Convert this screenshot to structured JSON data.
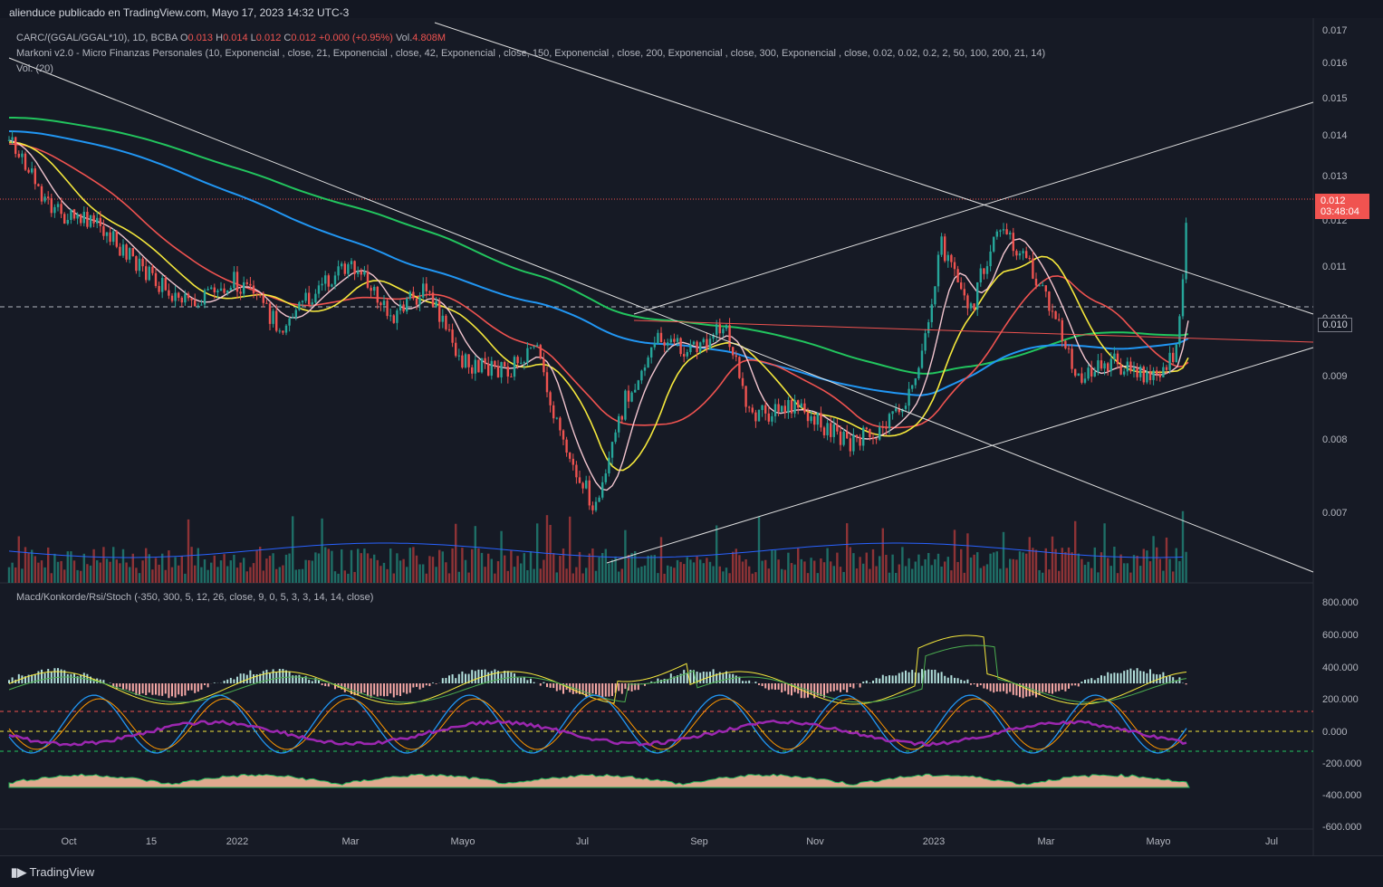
{
  "header": {
    "publisher": "alienduce publicado en TradingView.com, Mayo 17, 2023 14:32 UTC-3"
  },
  "legend": {
    "symbol": "CARC/(GGAL/GGAL*10), 1D, BCBA",
    "o_label": "O",
    "o_value": "0.013",
    "h_label": "H",
    "h_value": "0.014",
    "l_label": "L",
    "l_value": "0.012",
    "c_label": "C",
    "c_value": "0.012",
    "change": "+0.000 (+0.95%)",
    "vol_label": "Vol.",
    "vol_value": "4.808M",
    "indicator1": "Markoni v2.0 - Micro Finanzas Personales (10, Exponencial , close, 21, Exponencial , close, 42, Exponencial , close, 150, Exponencial , close, 200, Exponencial , close, 300, Exponencial , close, 0.02, 0.02, 0.2, 2, 50, 100, 200, 21, 14)",
    "indicator2": "Vol. (20)",
    "lower_indicator": "Macd/Konkorde/Rsi/Stoch (-350, 300, 5, 12, 26, close, 9, 0, 5, 3, 3, 14, 14, close)"
  },
  "price_axis": [
    "0.017",
    "0.016",
    "0.015",
    "0.014",
    "0.013",
    "0.012",
    "0.011",
    "0.010",
    "0.009",
    "0.008",
    "0.007"
  ],
  "osc_axis": [
    "800.000",
    "600.000",
    "400.000",
    "200.000",
    "0.000",
    "-200.000",
    "-400.000",
    "-600.000"
  ],
  "time_axis": [
    "Oct",
    "15",
    "2022",
    "Mar",
    "Mayo",
    "Jul",
    "Sep",
    "Nov",
    "2023",
    "Mar",
    "Mayo",
    "Jul"
  ],
  "last_price": {
    "value": "0.012",
    "countdown": "03:48:04"
  },
  "marked_level": "0.010",
  "footer": {
    "brand": "TradingView"
  },
  "colors": {
    "up": "#26a69a",
    "down": "#ef5350",
    "ema_green": "#22c55e",
    "ema_blue": "#2196f3",
    "ema_red": "#f05350",
    "ema_yellow": "#f5e83c",
    "ema_pink": "#f3c6d0",
    "trendline": "#e0e0e0"
  }
}
